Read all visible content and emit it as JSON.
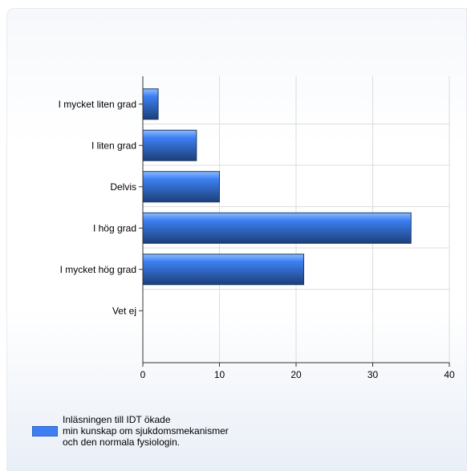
{
  "chart_data": {
    "type": "bar",
    "orientation": "horizontal",
    "categories": [
      "I mycket liten grad",
      "I liten grad",
      "Delvis",
      "I hög grad",
      "I mycket hög grad",
      "Vet ej"
    ],
    "series": [
      {
        "name": "Inläsningen till IDT ökade\nmin kunskap om sjukdomsmekanismer\noch den normala fysiologin.",
        "values": [
          2,
          7,
          10,
          35,
          21,
          0
        ]
      }
    ],
    "xlim": [
      0,
      40
    ],
    "xticks": [
      0,
      10,
      20,
      30,
      40
    ],
    "grid": true,
    "legend_position": "bottom-left",
    "colors": {
      "bar_top": "#8fbcff",
      "bar_mid": "#3d7ff2",
      "bar_bottom": "#1c3f78",
      "grid": "#dcdcdc"
    }
  }
}
